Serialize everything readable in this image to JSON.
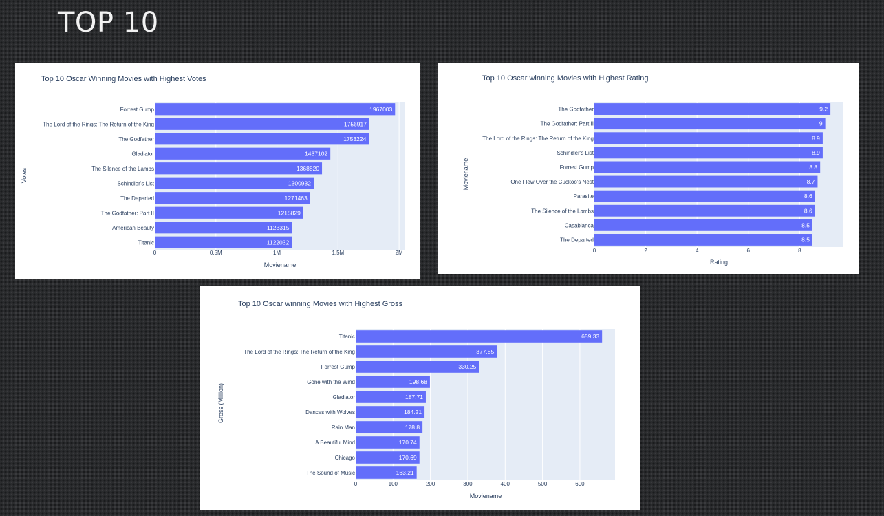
{
  "slide": {
    "title": "TOP 10"
  },
  "chart_data": [
    {
      "id": "votes",
      "type": "bar",
      "orientation": "horizontal",
      "title": "Top 10 Oscar Winning Movies with Highest Votes",
      "xlabel": "Moviename",
      "ylabel": "Votes",
      "xlim": [
        0,
        2050000
      ],
      "ticks": [
        0,
        500000,
        1000000,
        1500000,
        2000000
      ],
      "tick_labels": [
        "0",
        "0.5M",
        "1M",
        "1.5M",
        "2M"
      ],
      "categories": [
        "Forrest Gump",
        "The Lord of the Rings: The Return of the King",
        "The Godfather",
        "Gladiator",
        "The Silence of the Lambs",
        "Schindler's List",
        "The Departed",
        "The Godfather: Part II",
        "American Beauty",
        "Titanic"
      ],
      "values": [
        1967003,
        1756917,
        1753224,
        1437102,
        1368820,
        1300932,
        1271463,
        1215829,
        1123315,
        1122032
      ],
      "value_labels": [
        "1967003",
        "1756917",
        "1753224",
        "1437102",
        "1368820",
        "1300932",
        "1271463",
        "1215829",
        "1123315",
        "1122032"
      ],
      "bar_color": "#636efa",
      "plot_bg": "#e5ecf6"
    },
    {
      "id": "rating",
      "type": "bar",
      "orientation": "horizontal",
      "title": "Top 10 Oscar winning Movies with Highest Rating",
      "xlabel": "Rating",
      "ylabel": "Moviename",
      "xlim": [
        0,
        9.68
      ],
      "ticks": [
        0,
        2,
        4,
        6,
        8
      ],
      "tick_labels": [
        "0",
        "2",
        "4",
        "6",
        "8"
      ],
      "categories": [
        "The Godfather",
        "The Godfather: Part II",
        "The Lord of the Rings: The Return of the King",
        "Schindler's List",
        "Forrest Gump",
        "One Flew Over the Cuckoo's Nest",
        "Parasite",
        "The Silence of the Lambs",
        "Casablanca",
        "The Departed"
      ],
      "values": [
        9.2,
        9,
        8.9,
        8.9,
        8.8,
        8.7,
        8.6,
        8.6,
        8.5,
        8.5
      ],
      "value_labels": [
        "9.2",
        "9",
        "8.9",
        "8.9",
        "8.8",
        "8.7",
        "8.6",
        "8.6",
        "8.5",
        "8.5"
      ],
      "bar_color": "#636efa",
      "plot_bg": "#e5ecf6"
    },
    {
      "id": "gross",
      "type": "bar",
      "orientation": "horizontal",
      "title": "Top 10 Oscar winning Movies with Highest Gross",
      "xlabel": "Moviename",
      "ylabel": "Gross (Million)",
      "xlim": [
        0,
        694
      ],
      "ticks": [
        0,
        100,
        200,
        300,
        400,
        500,
        600
      ],
      "tick_labels": [
        "0",
        "100",
        "200",
        "300",
        "400",
        "500",
        "600"
      ],
      "categories": [
        "Titanic",
        "The Lord of the Rings: The Return of the King",
        "Forrest Gump",
        "Gone with the Wind",
        "Gladiator",
        "Dances with Wolves",
        "Rain Man",
        "A Beautiful Mind",
        "Chicago",
        "The Sound of Music"
      ],
      "values": [
        659.33,
        377.85,
        330.25,
        198.68,
        187.71,
        184.21,
        178.8,
        170.74,
        170.69,
        163.21
      ],
      "value_labels": [
        "659.33",
        "377.85",
        "330.25",
        "198.68",
        "187.71",
        "184.21",
        "178.8",
        "170.74",
        "170.69",
        "163.21"
      ],
      "bar_color": "#636efa",
      "plot_bg": "#e5ecf6"
    }
  ]
}
